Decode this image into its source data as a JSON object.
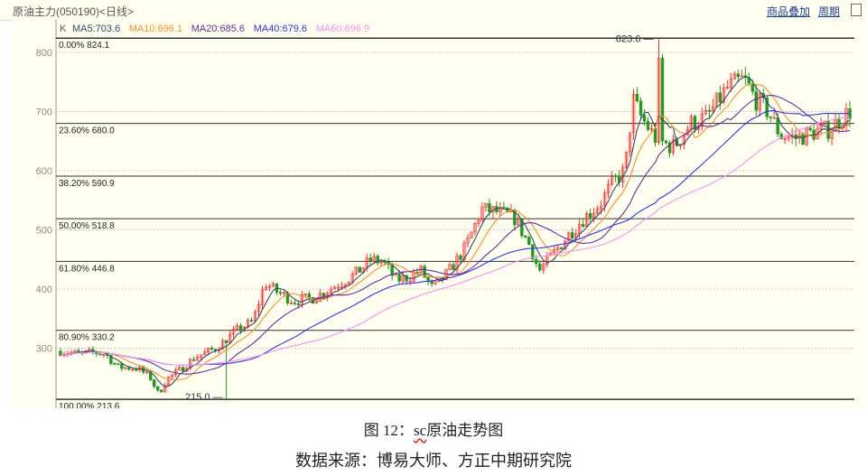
{
  "header": {
    "title": "原油主力(050190)<日线>",
    "links": [
      "商品叠加",
      "周期"
    ]
  },
  "legend": {
    "k": "K",
    "ma": [
      {
        "label": "MA5:703.6",
        "color": "#2f4a6a"
      },
      {
        "label": "MA10:696.1",
        "color": "#ff8c2a"
      },
      {
        "label": "MA20:685.6",
        "color": "#6a2ca0"
      },
      {
        "label": "MA40:679.6",
        "color": "#3030ff"
      },
      {
        "label": "MA60:696.9",
        "color": "#ff8cf0"
      }
    ]
  },
  "colors": {
    "up": "#ff3030",
    "down": "#1f9a1f",
    "grid": "#c8c8c8",
    "fib": "#333333"
  },
  "chart_data": {
    "type": "candlestick",
    "title": "原油主力(050190)<日线>",
    "ylim": [
      205,
      835
    ],
    "yticks": [
      300,
      400,
      500,
      600,
      700,
      800
    ],
    "fib_levels": [
      {
        "label": "0.00% 824.1",
        "value": 824.1
      },
      {
        "label": "23.60% 680.0",
        "value": 680.0
      },
      {
        "label": "38.20% 590.9",
        "value": 590.9
      },
      {
        "label": "50.00% 518.8",
        "value": 518.8
      },
      {
        "label": "61.80% 446.8",
        "value": 446.8
      },
      {
        "label": "80.90% 330.2",
        "value": 330.2
      },
      {
        "label": "100.00% 213.6",
        "value": 213.6
      }
    ],
    "high_marker": {
      "label": "823.6",
      "value": 823.6
    },
    "low_marker": {
      "label": "215.0",
      "value": 215.0
    },
    "candle_count": 220,
    "approx_close_path": [
      [
        0,
        295
      ],
      [
        10,
        290
      ],
      [
        16,
        293
      ],
      [
        22,
        290
      ],
      [
        28,
        268
      ],
      [
        38,
        266
      ],
      [
        44,
        250
      ],
      [
        48,
        222
      ],
      [
        52,
        248
      ],
      [
        58,
        262
      ],
      [
        66,
        285
      ],
      [
        76,
        300
      ],
      [
        86,
        330
      ],
      [
        94,
        345
      ],
      [
        100,
        410
      ],
      [
        106,
        395
      ],
      [
        114,
        380
      ],
      [
        124,
        385
      ],
      [
        134,
        405
      ],
      [
        144,
        425
      ],
      [
        152,
        450
      ],
      [
        158,
        445
      ],
      [
        164,
        415
      ],
      [
        170,
        420
      ],
      [
        176,
        432
      ],
      [
        182,
        400
      ],
      [
        190,
        430
      ],
      [
        198,
        470
      ],
      [
        206,
        535
      ],
      [
        214,
        530
      ],
      [
        222,
        520
      ],
      [
        230,
        470
      ],
      [
        234,
        430
      ],
      [
        240,
        455
      ],
      [
        248,
        490
      ],
      [
        256,
        520
      ],
      [
        264,
        545
      ],
      [
        270,
        580
      ],
      [
        276,
        600
      ],
      [
        280,
        720
      ],
      [
        284,
        690
      ],
      [
        292,
        650
      ],
      [
        300,
        640
      ],
      [
        308,
        680
      ],
      [
        316,
        690
      ],
      [
        326,
        740
      ],
      [
        334,
        755
      ],
      [
        340,
        720
      ],
      [
        346,
        700
      ],
      [
        352,
        660
      ],
      [
        360,
        655
      ],
      [
        368,
        665
      ],
      [
        376,
        670
      ],
      [
        382,
        690
      ],
      [
        386,
        700
      ]
    ],
    "ma_periods": [
      5,
      10,
      20,
      40,
      60
    ]
  },
  "caption": {
    "fig": "图 12：",
    "sc": "sc",
    "title": "原油走势图",
    "source": "数据来源：博易大师、方正中期研究院"
  }
}
